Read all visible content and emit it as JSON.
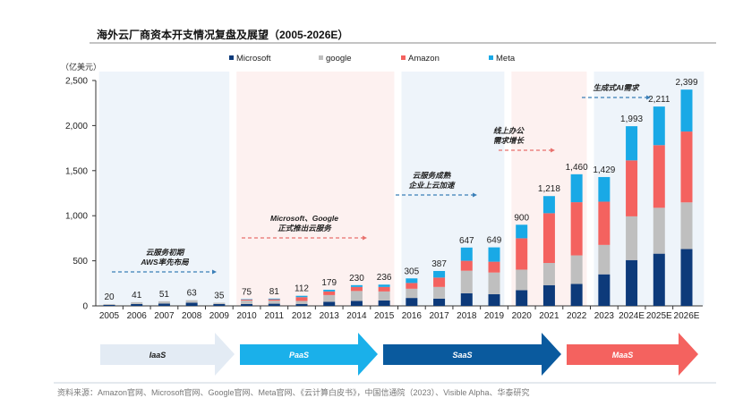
{
  "title": "海外云厂商资本开支情况复盘及展望（2005-2026E）",
  "source": "资料来源：Amazon官网、Microsoft官网、Google官网、Meta官网、《云计算白皮书》，中国信通院（2023）、Visible Alpha、华泰研究",
  "chart_data": {
    "type": "bar",
    "stacked": true,
    "ylabel": "（亿美元）",
    "ylim": [
      0,
      2500
    ],
    "yticks": [
      "0",
      "500",
      "1,000",
      "1,500",
      "2,000",
      "2,500"
    ],
    "grid": false,
    "legend_position": "top",
    "categories": [
      "2005",
      "2006",
      "2007",
      "2008",
      "2009",
      "2010",
      "2011",
      "2012",
      "2013",
      "2014",
      "2015",
      "2016",
      "2017",
      "2018",
      "2019",
      "2020",
      "2021",
      "2022",
      "2023",
      "2024E",
      "2025E",
      "2026E"
    ],
    "totals": [
      "20",
      "41",
      "51",
      "63",
      "35",
      "75",
      "81",
      "112",
      "179",
      "230",
      "236",
      "305",
      "387",
      "647",
      "649",
      "900",
      "1,218",
      "1,460",
      "1,429",
      "1,993",
      "2,211",
      "2,399"
    ],
    "series": [
      {
        "name": "Microsoft",
        "color": "#0d3a7a",
        "values": [
          10,
          20,
          25,
          35,
          20,
          20,
          24,
          22,
          45,
          55,
          60,
          88,
          80,
          140,
          130,
          174,
          230,
          243,
          350,
          508,
          579,
          630
        ]
      },
      {
        "name": "google",
        "color": "#bfbfbf",
        "values": [
          10,
          21,
          26,
          28,
          15,
          40,
          34,
          33,
          75,
          110,
          100,
          102,
          130,
          250,
          240,
          228,
          246,
          317,
          326,
          485,
          509,
          518
        ]
      },
      {
        "name": "Amazon",
        "color": "#f4625f",
        "values": [
          0,
          0,
          0,
          0,
          0,
          10,
          15,
          42,
          40,
          45,
          50,
          64,
          104,
          110,
          120,
          348,
          552,
          590,
          480,
          621,
          695,
          786
        ]
      },
      {
        "name": "Meta",
        "color": "#19a9e6",
        "values": [
          0,
          0,
          0,
          0,
          0,
          5,
          8,
          15,
          19,
          20,
          26,
          51,
          73,
          147,
          159,
          150,
          190,
          310,
          273,
          379,
          428,
          465
        ]
      }
    ],
    "periods": [
      {
        "from": "2005",
        "to": "2009",
        "shade": "#eef4fa",
        "annotation": [
          "云服务初期",
          "AWS率先布局"
        ],
        "arrow_color": "#3a7fb8"
      },
      {
        "from": "2010",
        "to": "2015",
        "shade": "#fdf1f0",
        "annotation": [
          "Microsoft、Google",
          "正式推出云服务"
        ],
        "arrow_color": "#e8716d"
      },
      {
        "from": "2016",
        "to": "2019",
        "shade": "#eef4fa",
        "annotation": [
          "云服务成熟",
          "企业上云加速"
        ],
        "arrow_color": "#3a7fb8"
      },
      {
        "from": "2020",
        "to": "2022",
        "shade": "#fdf1f0",
        "annotation": [
          "线上办公",
          "需求增长"
        ],
        "arrow_color": "#e8716d"
      },
      {
        "from": "2023",
        "to": "2026E",
        "shade": "#eef4fa",
        "annotation": [
          "生成式AI需求"
        ],
        "arrow_color": "#3a7fb8"
      }
    ],
    "stages": [
      {
        "label": "IaaS",
        "color": "#e3ebf4",
        "text_color": "#1a1a1a"
      },
      {
        "label": "PaaS",
        "color": "#1ab0ea",
        "text_color": "#ffffff"
      },
      {
        "label": "SaaS",
        "color": "#0a5a9e",
        "text_color": "#ffffff"
      },
      {
        "label": "MaaS",
        "color": "#f4625f",
        "text_color": "#ffffff"
      }
    ]
  }
}
